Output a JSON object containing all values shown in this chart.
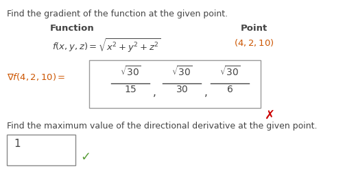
{
  "bg_color": "#ffffff",
  "title_text": "Find the gradient of the function at the given point.",
  "col1_header": "Function",
  "col2_header": "Point",
  "func_text": "$f(x, y, z) = \\sqrt{x^2 + y^2 + z^2}$",
  "point_text": "$(4, 2, 10)$",
  "gradient_label": "$\\nabla f(4, 2, 10) =$",
  "frac1_num": "$\\sqrt{30}$",
  "frac1_den": "$15$",
  "frac2_num": "$\\sqrt{30}$",
  "frac2_den": "$30$",
  "frac3_num": "$\\sqrt{30}$",
  "frac3_den": "$6$",
  "bottom_text": "Find the maximum value of the directional derivative at the given point.",
  "answer_text": "1",
  "text_color": "#444444",
  "red_color": "#cc0000",
  "green_color": "#5a9e3a",
  "orange_color": "#cc5500",
  "box_color": "#aaaaaa"
}
